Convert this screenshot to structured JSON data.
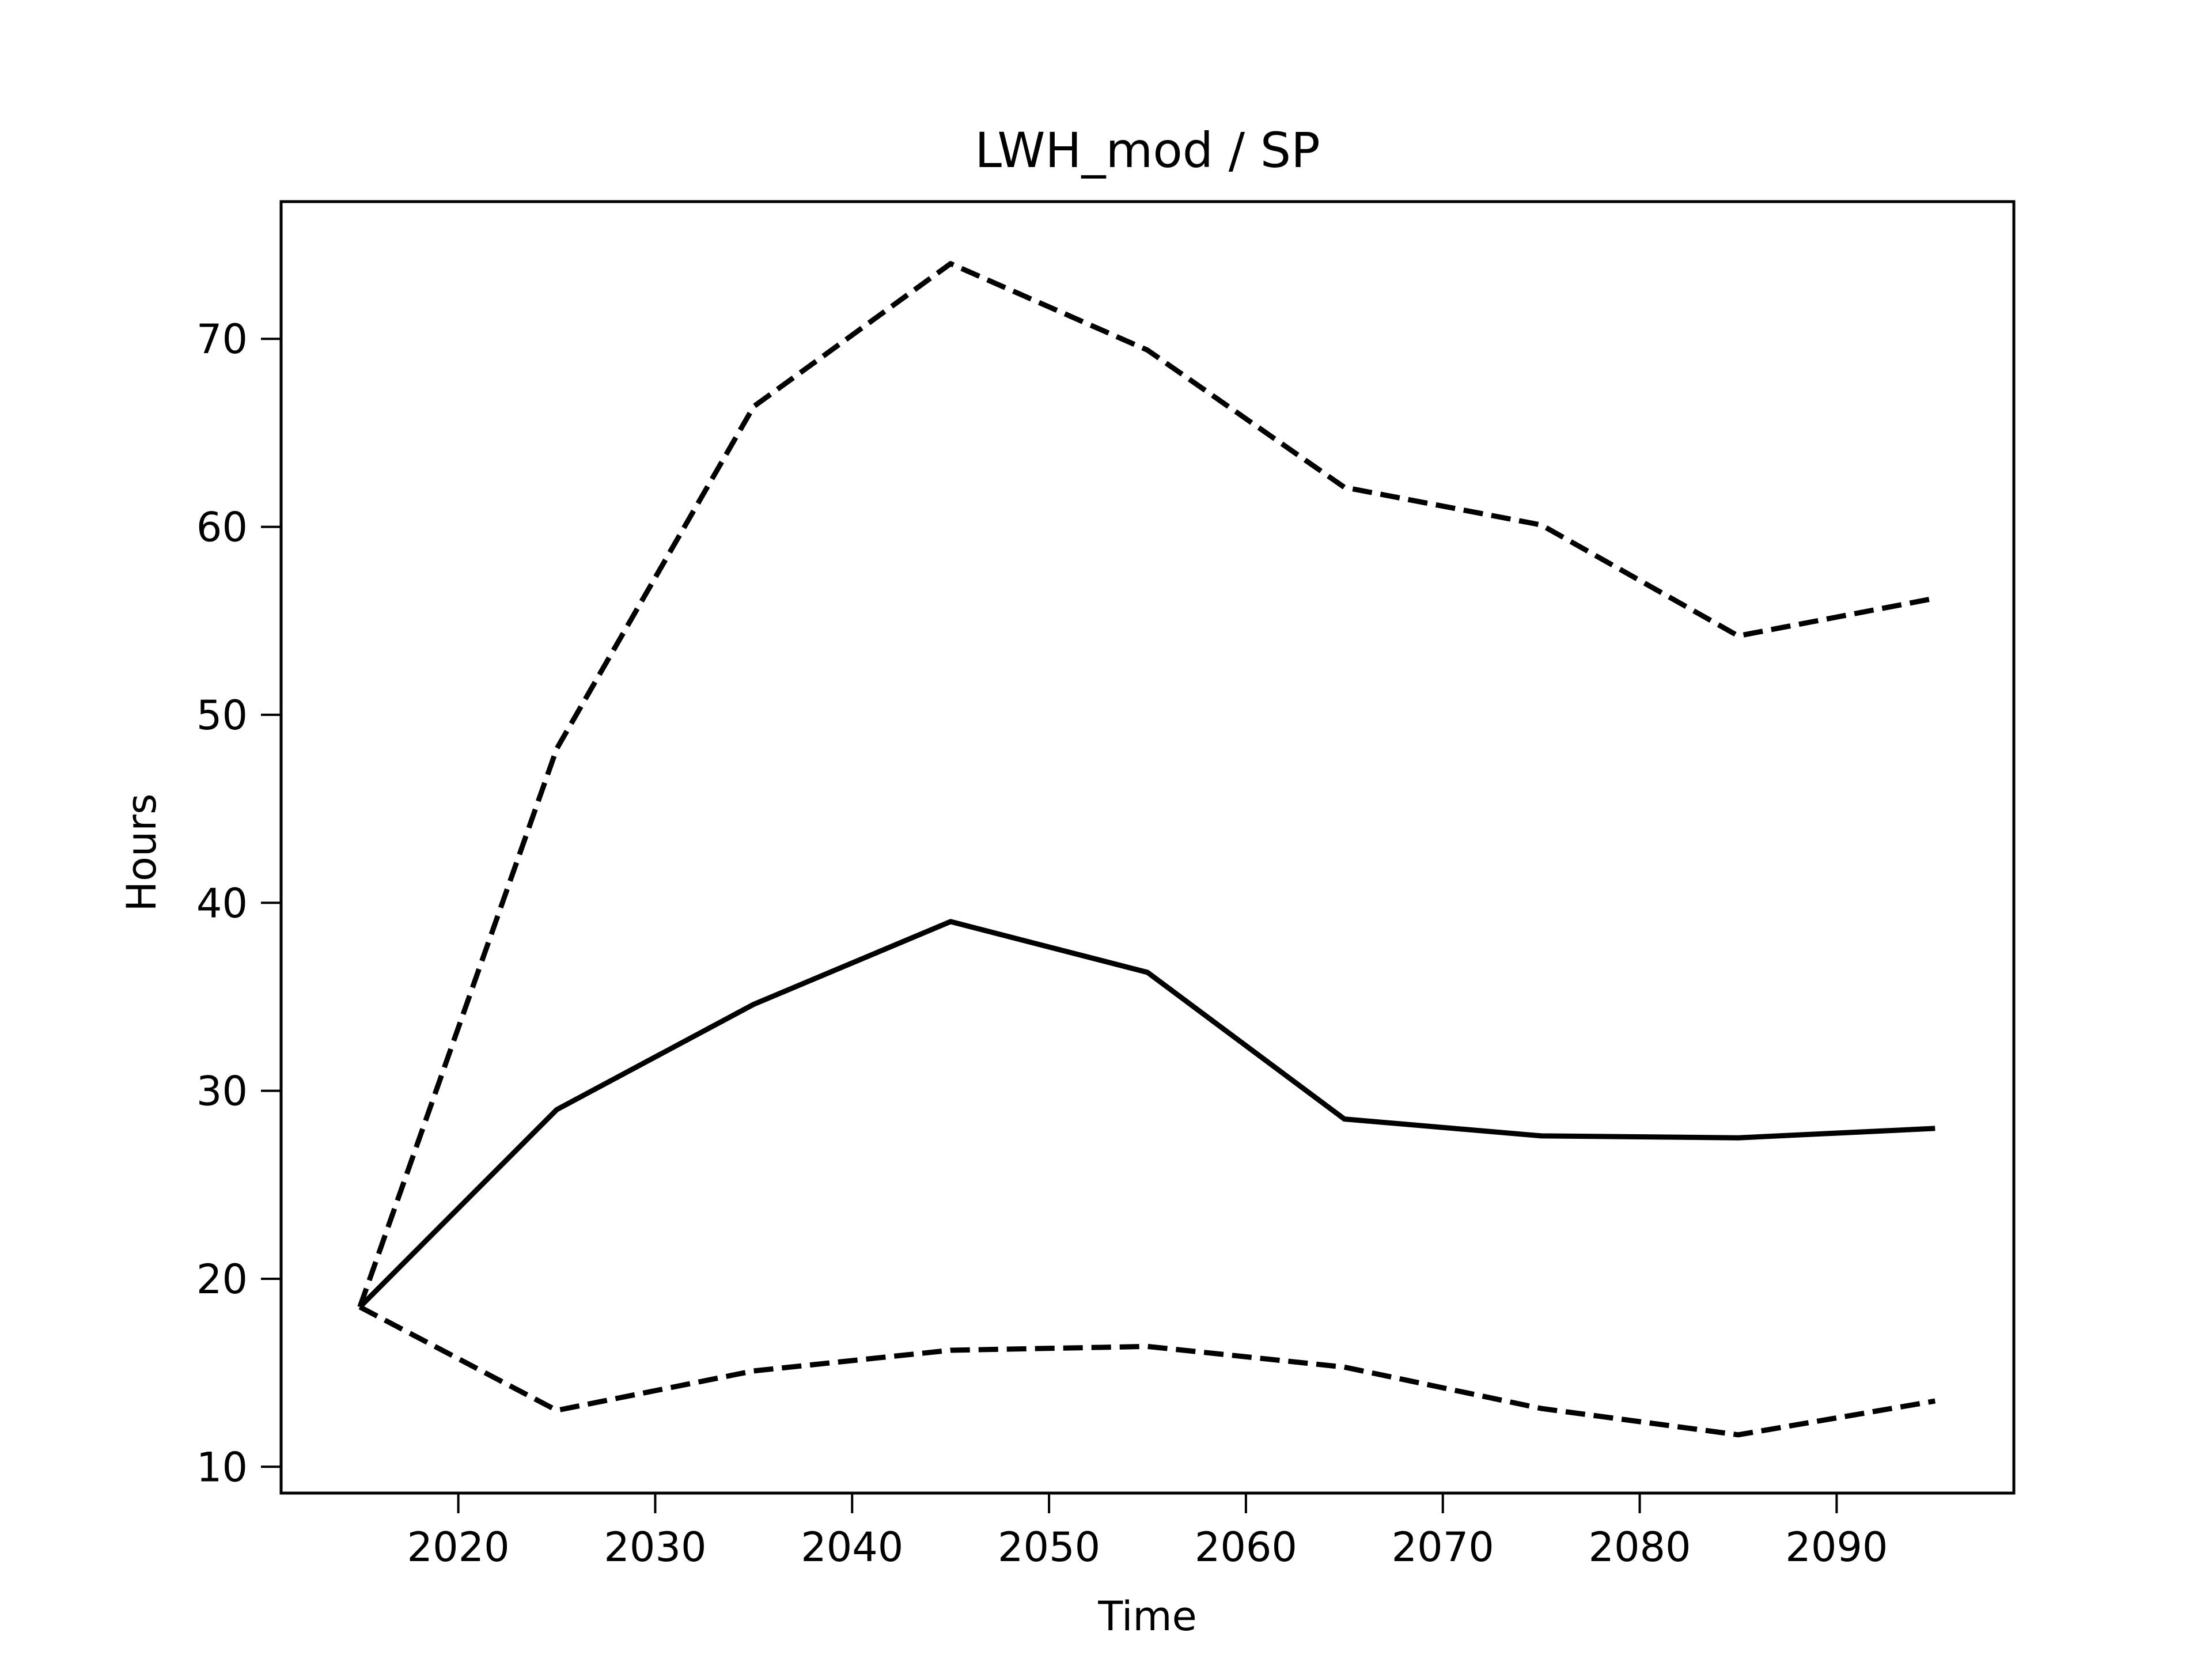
{
  "chart_data": {
    "type": "line",
    "title": "LWH_mod / SP",
    "xlabel": "Time",
    "ylabel": "Hours",
    "xlim": [
      2011,
      2099
    ],
    "ylim": [
      8.6,
      77.3
    ],
    "x_ticks": [
      2020,
      2030,
      2040,
      2050,
      2060,
      2070,
      2080,
      2090
    ],
    "y_ticks": [
      10,
      20,
      30,
      40,
      50,
      60,
      70
    ],
    "grid": false,
    "legend": "none",
    "x": [
      2015,
      2025,
      2035,
      2045,
      2055,
      2065,
      2075,
      2085,
      2095
    ],
    "series": [
      {
        "style": "solid",
        "color": "#000000",
        "values": [
          18.5,
          29.0,
          34.6,
          39.0,
          36.3,
          28.5,
          27.6,
          27.5,
          28.0
        ]
      },
      {
        "style": "dashed",
        "color": "#000000",
        "values": [
          18.5,
          48.2,
          66.4,
          74.0,
          69.4,
          62.1,
          60.1,
          54.2,
          56.2
        ]
      },
      {
        "style": "dashed",
        "color": "#000000",
        "values": [
          18.5,
          13.0,
          15.1,
          16.2,
          16.4,
          15.3,
          13.1,
          11.7,
          13.5
        ]
      }
    ]
  }
}
